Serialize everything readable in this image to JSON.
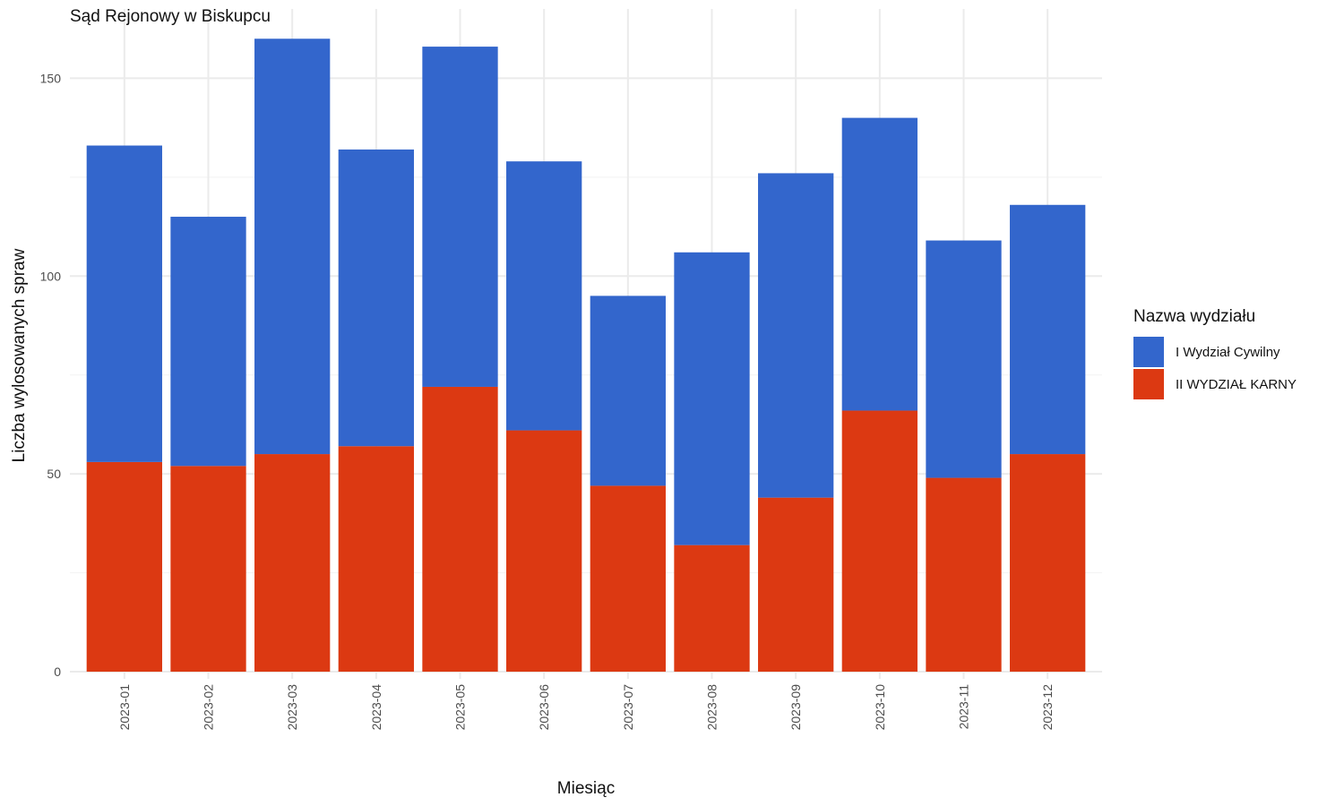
{
  "chart_data": {
    "type": "bar",
    "stacked": true,
    "title": "Sąd Rejonowy w Biskupcu",
    "xlabel": "Miesiąc",
    "ylabel": "Liczba wylosowanych spraw",
    "categories": [
      "2023-01",
      "2023-02",
      "2023-03",
      "2023-04",
      "2023-05",
      "2023-06",
      "2023-07",
      "2023-08",
      "2023-09",
      "2023-10",
      "2023-11",
      "2023-12"
    ],
    "series": [
      {
        "name": "I Wydział Cywilny",
        "color": "#3366cc",
        "values": [
          80,
          63,
          105,
          75,
          86,
          68,
          48,
          74,
          82,
          74,
          60,
          63
        ]
      },
      {
        "name": "II WYDZIAŁ KARNY",
        "color": "#dc3912",
        "values": [
          53,
          52,
          55,
          57,
          72,
          61,
          47,
          32,
          44,
          66,
          49,
          55
        ]
      }
    ],
    "ylim": [
      0,
      163
    ],
    "yticks": [
      0,
      50,
      100,
      150
    ],
    "legend_title": "Nazwa wydziału",
    "legend_position": "right",
    "grid": true
  }
}
